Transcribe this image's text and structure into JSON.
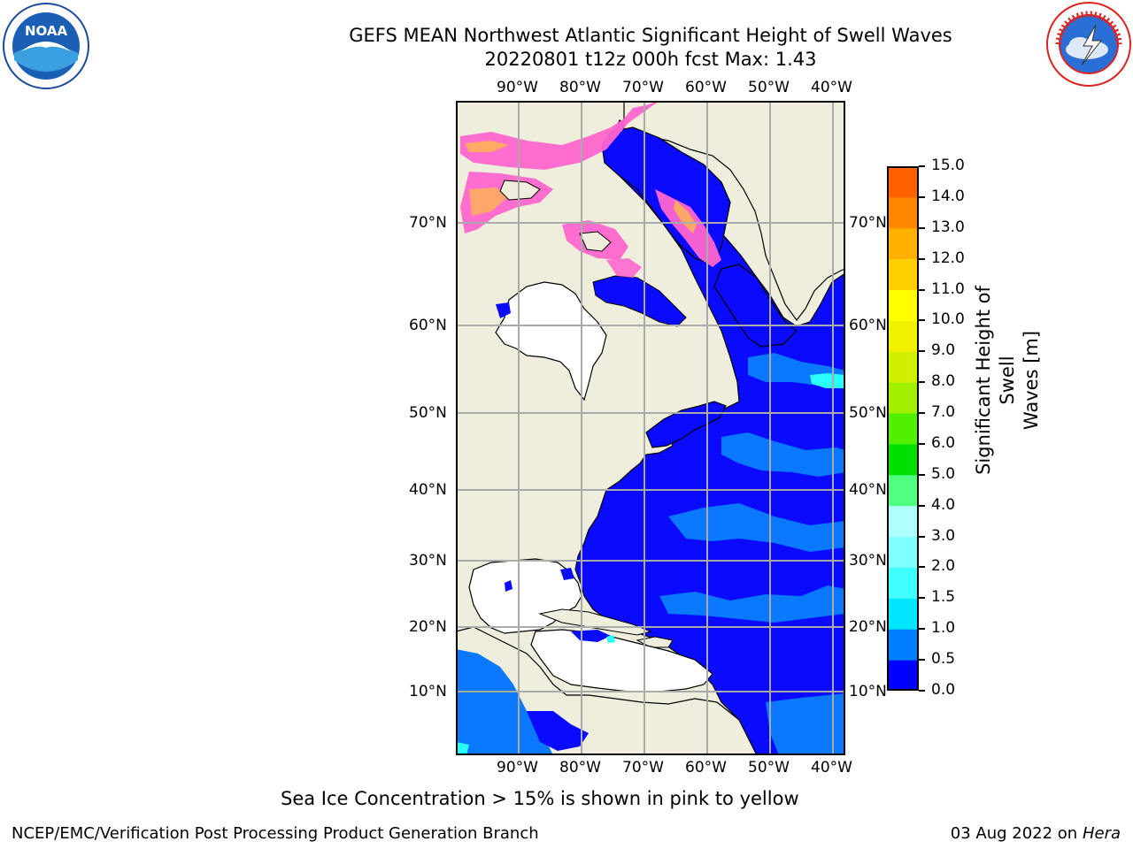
{
  "header": {
    "title_line1": "GEFS MEAN Northwest Atlantic Significant Height of Swell Waves",
    "title_line2": "20220801 t12z 000h fcst   Max: 1.43"
  },
  "logos": {
    "left": {
      "name": "noaa-logo",
      "text": "NOAA"
    },
    "right": {
      "name": "national-weather-service-logo",
      "text": "NATIONAL WEATHER SERVICE"
    }
  },
  "map": {
    "lon_labels": [
      "90°W",
      "80°W",
      "70°W",
      "60°W",
      "50°W",
      "40°W"
    ],
    "lat_labels": [
      "70°N",
      "60°N",
      "50°N",
      "40°N",
      "30°N",
      "20°N",
      "10°N"
    ],
    "colors": {
      "land": "#efeedc",
      "ocean_low": "#0a0aff",
      "ocean_mid": "#0a78ff",
      "ocean_cyan": "#29ffff",
      "ice_pink": "#ff66cc",
      "ice_orange": "#ffb05a",
      "grid": "#aaaaaa"
    }
  },
  "colorbar": {
    "label_line1": "Significant Height of Swell",
    "label_line2": "Waves [m]",
    "ticks": [
      "15.0",
      "14.0",
      "13.0",
      "12.0",
      "11.0",
      "10.0",
      "9.0",
      "8.0",
      "7.0",
      "6.0",
      "5.0",
      "4.0",
      "3.0",
      "2.0",
      "1.5",
      "1.0",
      "0.5",
      "0.0"
    ],
    "colors_bottom_to_top": [
      "#0000ff",
      "#0080ff",
      "#00e6ff",
      "#40ffff",
      "#80ffff",
      "#b0ffff",
      "#50ff80",
      "#00e000",
      "#50f000",
      "#a0f000",
      "#d0f000",
      "#f0f000",
      "#ffff00",
      "#ffd000",
      "#ffb000",
      "#ff8800",
      "#ff6000",
      "#ff3000",
      "#ff0000"
    ]
  },
  "note": "Sea Ice Concentration > 15% is shown in pink to yellow",
  "footer": {
    "left": "NCEP/EMC/Verification Post Processing Product Generation Branch",
    "date": "03 Aug 2022 on",
    "host": "Hera"
  }
}
